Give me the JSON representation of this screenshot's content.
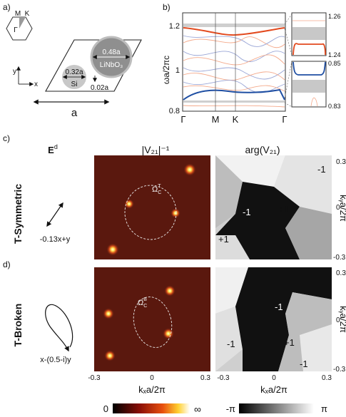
{
  "panel_a": {
    "label": "a)",
    "bz_labels": {
      "m": "M",
      "k": "K",
      "gamma": "Γ"
    },
    "axis": {
      "y": "y",
      "x": "x"
    },
    "large_rod": {
      "diameter": "0.48a",
      "material": "LiNbO₃"
    },
    "small_rod": {
      "diameter": "0.32a",
      "material": "Si"
    },
    "gap": "0.02a",
    "lattice_constant": "a"
  },
  "panel_b": {
    "label": "b)",
    "ylabel": "ωa/2πc",
    "yticks": [
      "1.2",
      "1",
      "0.8"
    ],
    "xticks": [
      "Γ",
      "M",
      "K",
      "Γ"
    ],
    "inset_top_ticks": [
      "1.26",
      "1.24"
    ],
    "inset_bottom_ticks": [
      "0.85",
      "0.83"
    ],
    "colors": {
      "upper_band": "#e34a1e",
      "lower_band": "#1f4fa3",
      "light_red": "#f4a98a",
      "light_blue": "#9aa6d6",
      "gap": "#c8c8c8"
    }
  },
  "panel_c": {
    "label": "c)",
    "row_title": "T-Symmetric",
    "polarization": "-0.13x+y",
    "contour_label": "Ω",
    "contour_sub": "C",
    "contour_sup": "T",
    "charges": [
      "-1",
      "-1",
      "+1",
      "+1"
    ]
  },
  "panel_d": {
    "label": "d)",
    "row_title": "T-Broken",
    "polarization": "x-(0.5-i)y",
    "contour_label": "Ω",
    "contour_sub": "C",
    "contour_sup": "B",
    "charges": [
      "-1",
      "-1",
      "+1",
      "-1"
    ]
  },
  "column_headers": {
    "field": "E",
    "field_sup": "d",
    "magnitude": "|V₂₁|⁻¹",
    "phase": "arg(V₂₁)"
  },
  "k_axes": {
    "x_ticks": [
      "-0.3",
      "0",
      "0.3"
    ],
    "y_ticks": [
      "0.3",
      "0",
      "-0.3"
    ],
    "xlabel": "kₓa/2π",
    "ylabel": "kᵧa/2π"
  },
  "colorbars": {
    "magnitude": {
      "min": "0",
      "max": "∞"
    },
    "phase": {
      "min": "-π",
      "max": "π"
    }
  }
}
